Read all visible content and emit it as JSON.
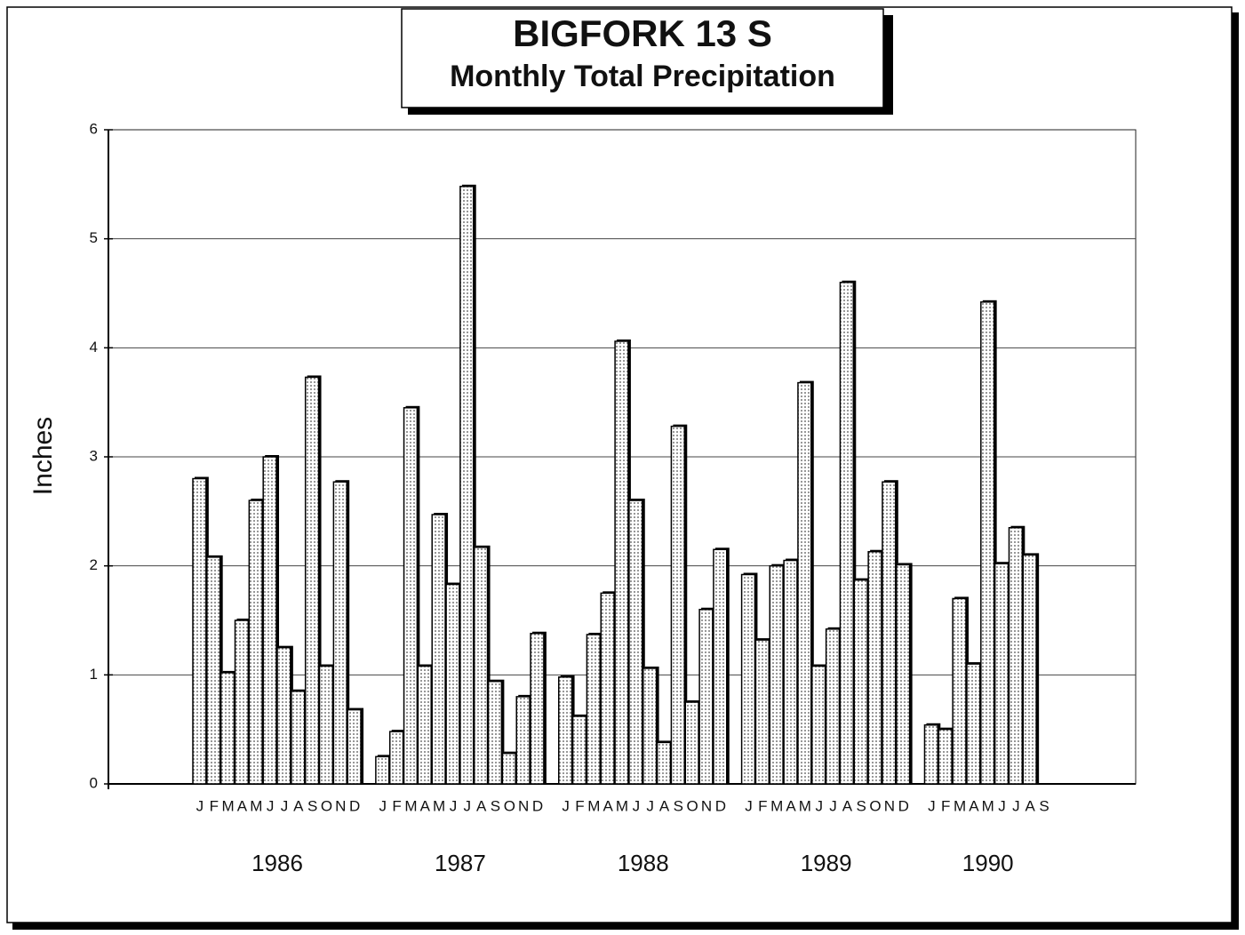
{
  "chart_data": {
    "type": "bar",
    "title": "BIGFORK 13 S",
    "subtitle": "Monthly Total Precipitation",
    "y_label": "Inches",
    "years": [
      "1986",
      "1987",
      "1988",
      "1989",
      "1990"
    ],
    "categories": [
      null,
      null,
      null,
      null,
      null,
      null,
      "J",
      "F",
      "M",
      "A",
      "M",
      "J",
      "J",
      "A",
      "S",
      "O",
      "N",
      "D",
      null,
      "J",
      "F",
      "M",
      "A",
      "M",
      "J",
      "J",
      "A",
      "S",
      "O",
      "N",
      "D",
      null,
      "J",
      "F",
      "M",
      "A",
      "M",
      "J",
      "J",
      "A",
      "S",
      "O",
      "N",
      "D",
      null,
      "J",
      "F",
      "M",
      "A",
      "M",
      "J",
      "J",
      "A",
      "S",
      "O",
      "N",
      "D",
      null,
      "J",
      "F",
      "M",
      "A",
      "M",
      "J",
      "J",
      "A",
      "S",
      null,
      null,
      null,
      null,
      null,
      null
    ],
    "values": [
      null,
      null,
      null,
      null,
      null,
      null,
      2.8,
      2.08,
      1.02,
      1.5,
      2.6,
      3.0,
      1.25,
      0.85,
      3.73,
      1.08,
      2.77,
      0.68,
      null,
      0.25,
      0.48,
      3.45,
      1.08,
      2.47,
      1.83,
      5.48,
      2.17,
      0.94,
      0.28,
      0.8,
      1.38,
      null,
      0.98,
      0.62,
      1.37,
      1.75,
      4.06,
      2.6,
      1.06,
      0.38,
      3.28,
      0.75,
      1.6,
      2.15,
      null,
      1.92,
      1.32,
      2.0,
      2.05,
      3.68,
      1.08,
      1.42,
      4.6,
      1.87,
      2.13,
      2.77,
      2.01,
      null,
      0.54,
      0.5,
      1.7,
      1.1,
      4.42,
      2.02,
      2.35,
      2.1,
      null,
      null,
      null,
      null,
      null,
      null,
      null
    ],
    "ylim": [
      0,
      6
    ],
    "yticks": [
      0,
      1,
      2,
      3,
      4,
      5,
      6
    ],
    "grid": true,
    "color": "#ffffff"
  }
}
